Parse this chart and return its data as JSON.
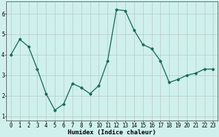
{
  "x": [
    0,
    1,
    2,
    3,
    4,
    5,
    6,
    7,
    8,
    9,
    10,
    11,
    12,
    13,
    14,
    15,
    16,
    17,
    18,
    19,
    20,
    21,
    22,
    23
  ],
  "y": [
    4.0,
    4.75,
    4.4,
    3.3,
    2.1,
    1.3,
    1.6,
    2.6,
    2.4,
    2.1,
    2.5,
    3.7,
    6.2,
    6.15,
    5.2,
    4.5,
    4.3,
    3.7,
    2.65,
    2.8,
    3.0,
    3.1,
    3.3,
    3.3
  ],
  "line_color": "#1a6b5a",
  "marker": "D",
  "marker_size": 1.8,
  "line_width": 1.0,
  "bg_color": "#cff0ec",
  "grid_color": "#b8c8c4",
  "xlabel": "Humidex (Indice chaleur)",
  "xlabel_fontsize": 6.5,
  "tick_fontsize": 5.5,
  "ylim": [
    0.8,
    6.6
  ],
  "xlim": [
    -0.5,
    23.5
  ],
  "yticks": [
    1,
    2,
    3,
    4,
    5,
    6
  ],
  "xticks": [
    0,
    1,
    2,
    3,
    4,
    5,
    6,
    7,
    8,
    9,
    10,
    11,
    12,
    13,
    14,
    15,
    16,
    17,
    18,
    19,
    20,
    21,
    22,
    23
  ]
}
